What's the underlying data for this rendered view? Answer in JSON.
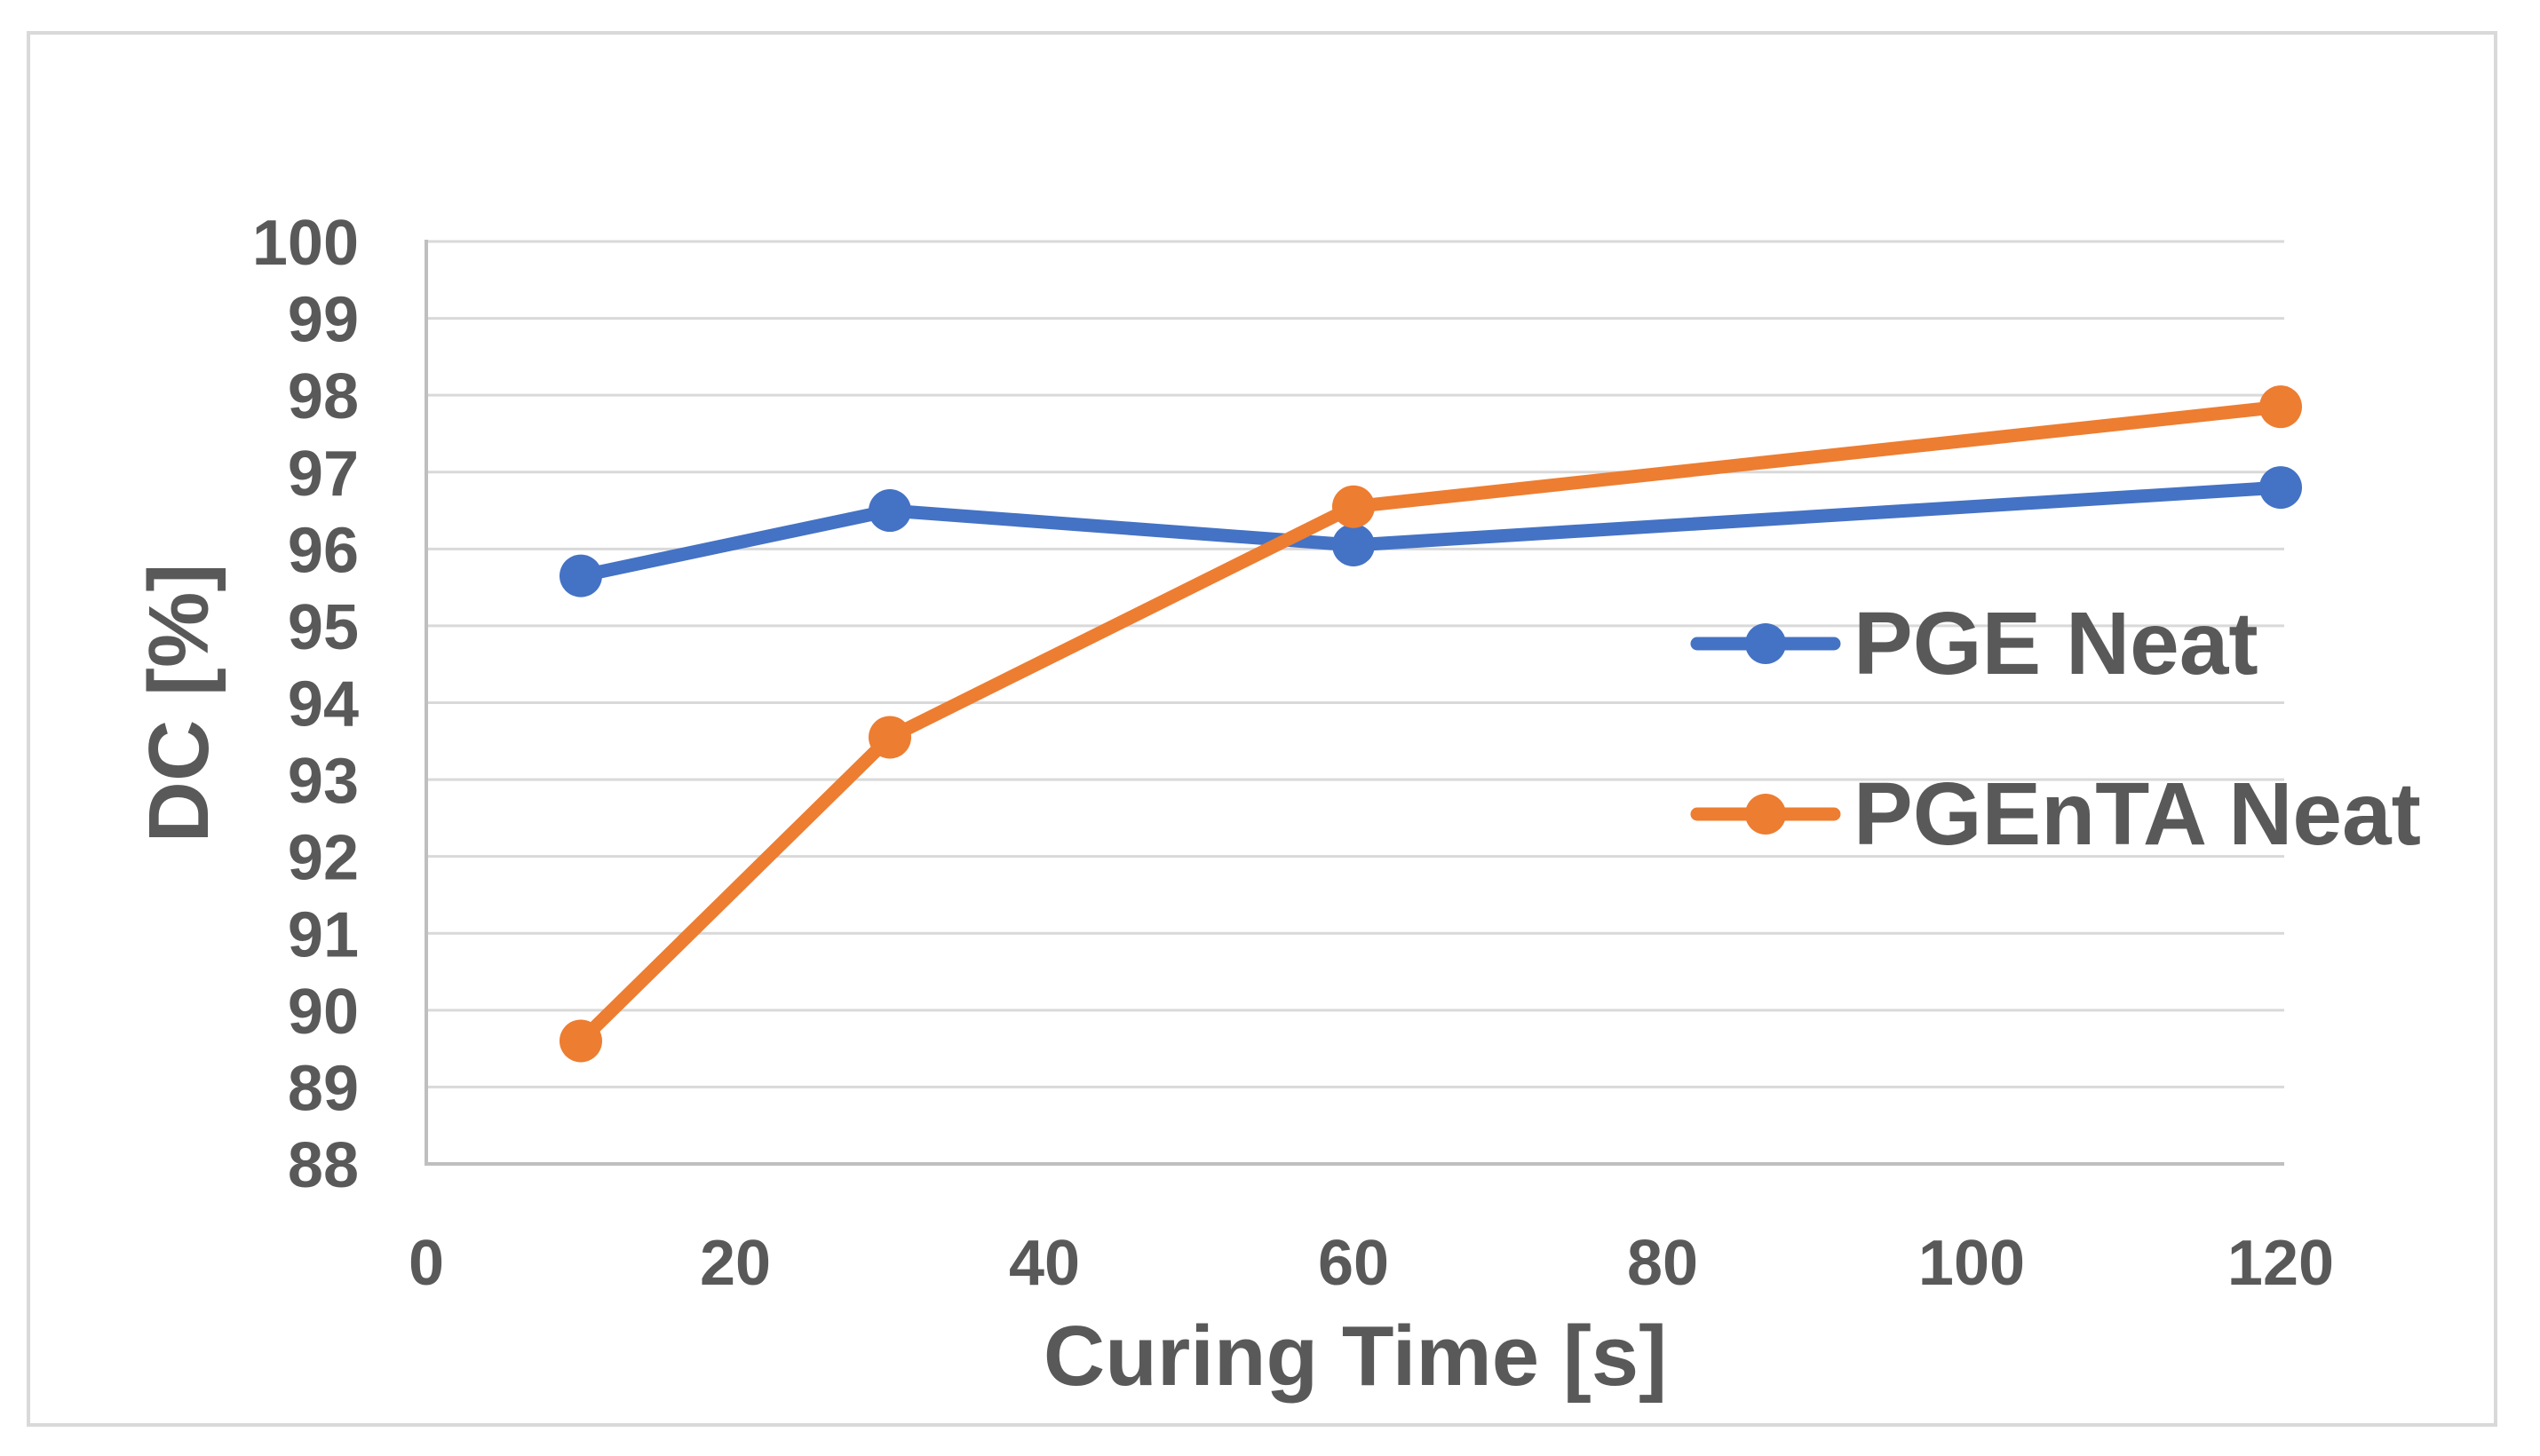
{
  "styles": {
    "text_color": "#595959",
    "grid_color": "#D9D9D9",
    "axis_color": "#BFBFBF",
    "border_color": "#D9D9D9",
    "background": "#FFFFFF",
    "series_blue": "#4472C4",
    "series_orange": "#ED7D31"
  },
  "chart_data": {
    "type": "line",
    "title": "",
    "xlabel": "Curing Time [s]",
    "ylabel": "DC [%]",
    "xlim": [
      0,
      120
    ],
    "ylim": [
      88,
      100
    ],
    "x_ticks": [
      0,
      20,
      40,
      60,
      80,
      100,
      120
    ],
    "y_ticks": [
      88,
      89,
      90,
      91,
      92,
      93,
      94,
      95,
      96,
      97,
      98,
      99,
      100
    ],
    "grid": "horizontal",
    "legend_position": "inside-right",
    "series": [
      {
        "name": "PGE Neat",
        "color": "#4472C4",
        "x": [
          10,
          30,
          60,
          120
        ],
        "y": [
          95.65,
          96.5,
          96.05,
          96.8
        ]
      },
      {
        "name": "PGEnTA Neat",
        "color": "#ED7D31",
        "x": [
          10,
          30,
          60,
          120
        ],
        "y": [
          89.6,
          93.55,
          96.55,
          97.85
        ]
      }
    ]
  }
}
